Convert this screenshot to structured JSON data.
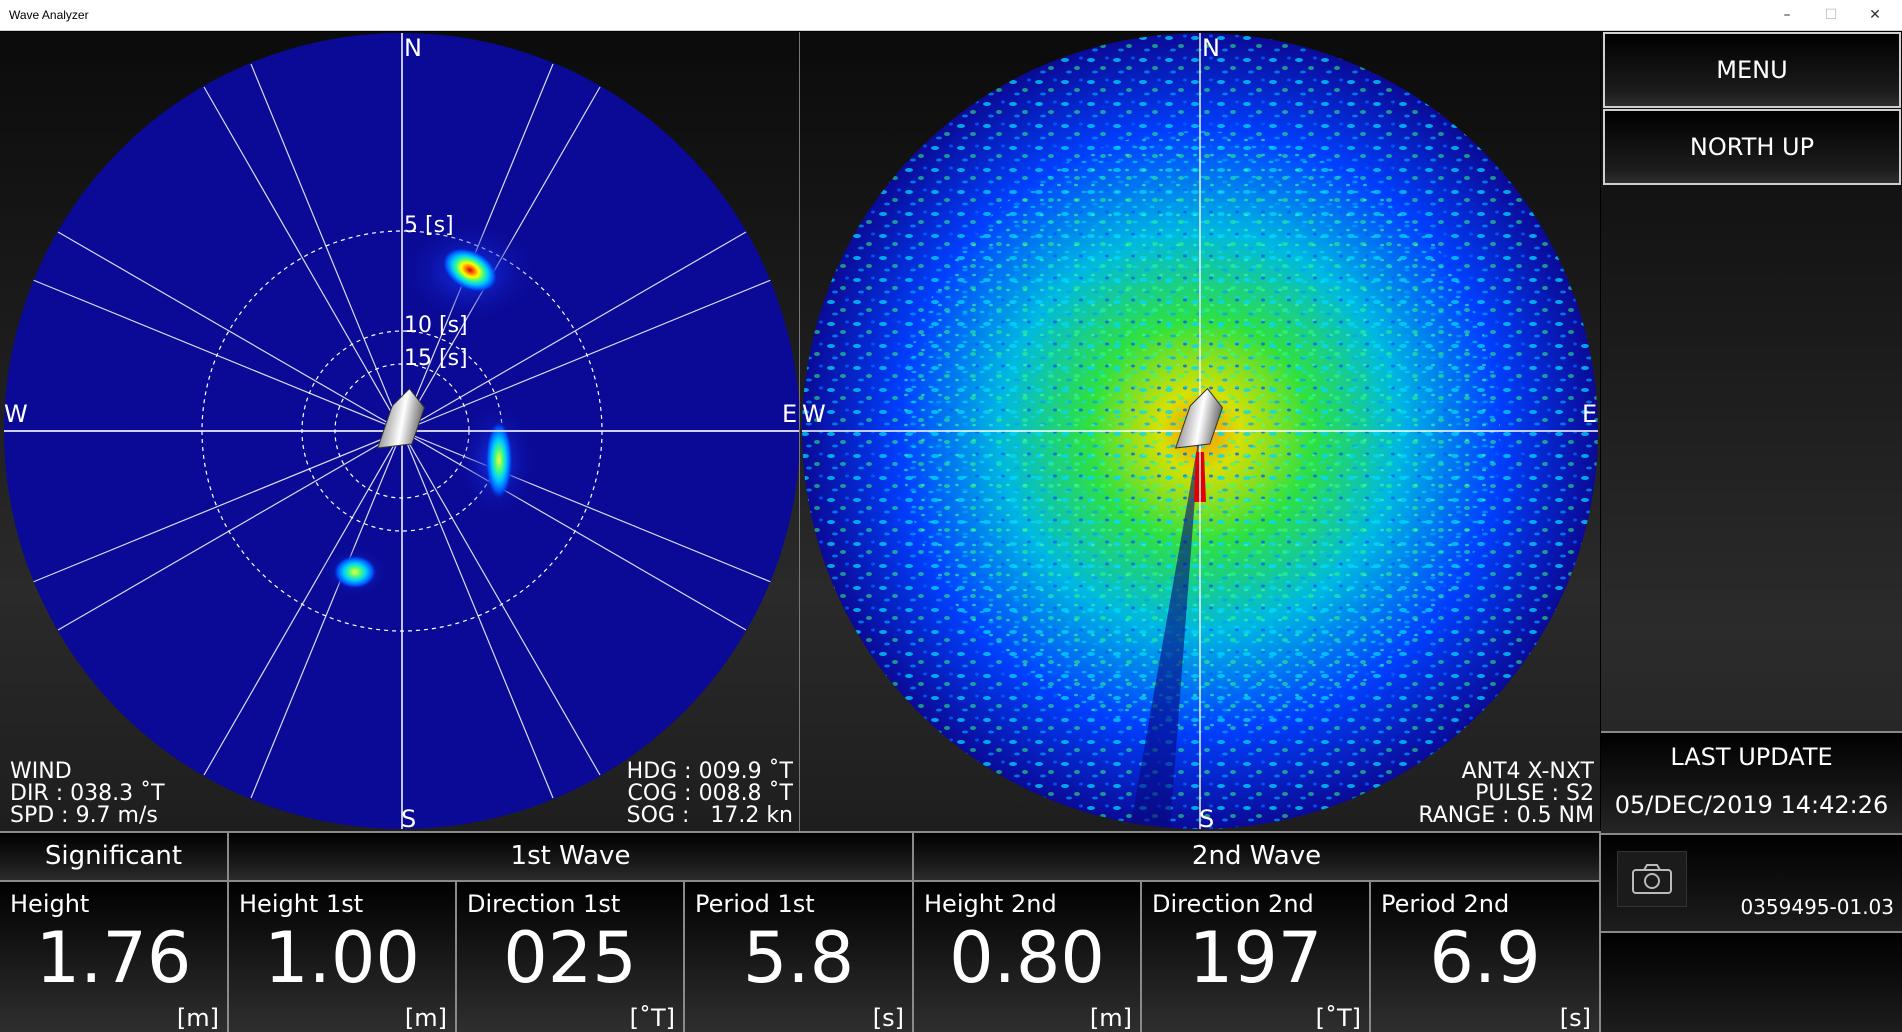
{
  "window": {
    "title": "Wave Analyzer",
    "minimize": "–",
    "maximize": "☐",
    "close": "✕"
  },
  "compass": {
    "n": "N",
    "s": "S",
    "e": "E",
    "w": "W"
  },
  "left_plot": {
    "rings": [
      "5 [s]",
      "10 [s]",
      "15 [s]"
    ],
    "wind": {
      "label": "WIND",
      "dir": "DIR : 038.3 ˚T",
      "spd": "SPD : 9.7 m/s"
    },
    "nav": {
      "hdg": "HDG : 009.9 ˚T",
      "cog": "COG : 008.8 ˚T",
      "sog": "SOG :   17.2 kn"
    }
  },
  "right_plot": {
    "antenna": "ANT4 X-NXT",
    "pulse": "PULSE : S2",
    "range": "RANGE : 0.5 NM"
  },
  "sidebar": {
    "menu": "MENU",
    "north_up": "NORTH UP",
    "last_update_label": "LAST UPDATE",
    "last_update_value": "05/DEC/2019 14:42:26",
    "version": "0359495-01.03"
  },
  "table": {
    "groups": {
      "significant": "Significant",
      "first": "1st Wave",
      "second": "2nd Wave"
    },
    "cells": [
      {
        "name": "Height",
        "value": "1.76",
        "unit": "[m]"
      },
      {
        "name": "Height 1st",
        "value": "1.00",
        "unit": "[m]"
      },
      {
        "name": "Direction 1st",
        "value": "025",
        "unit": "[˚T]"
      },
      {
        "name": "Period 1st",
        "value": "5.8",
        "unit": "[s]"
      },
      {
        "name": "Height 2nd",
        "value": "0.80",
        "unit": "[m]"
      },
      {
        "name": "Direction 2nd",
        "value": "197",
        "unit": "[˚T]"
      },
      {
        "name": "Period 2nd",
        "value": "6.9",
        "unit": "[s]"
      }
    ]
  },
  "colors": {
    "plot_bg": "#0a0a96",
    "grid_line": "#ffffff",
    "border": "#8a8a8a"
  }
}
